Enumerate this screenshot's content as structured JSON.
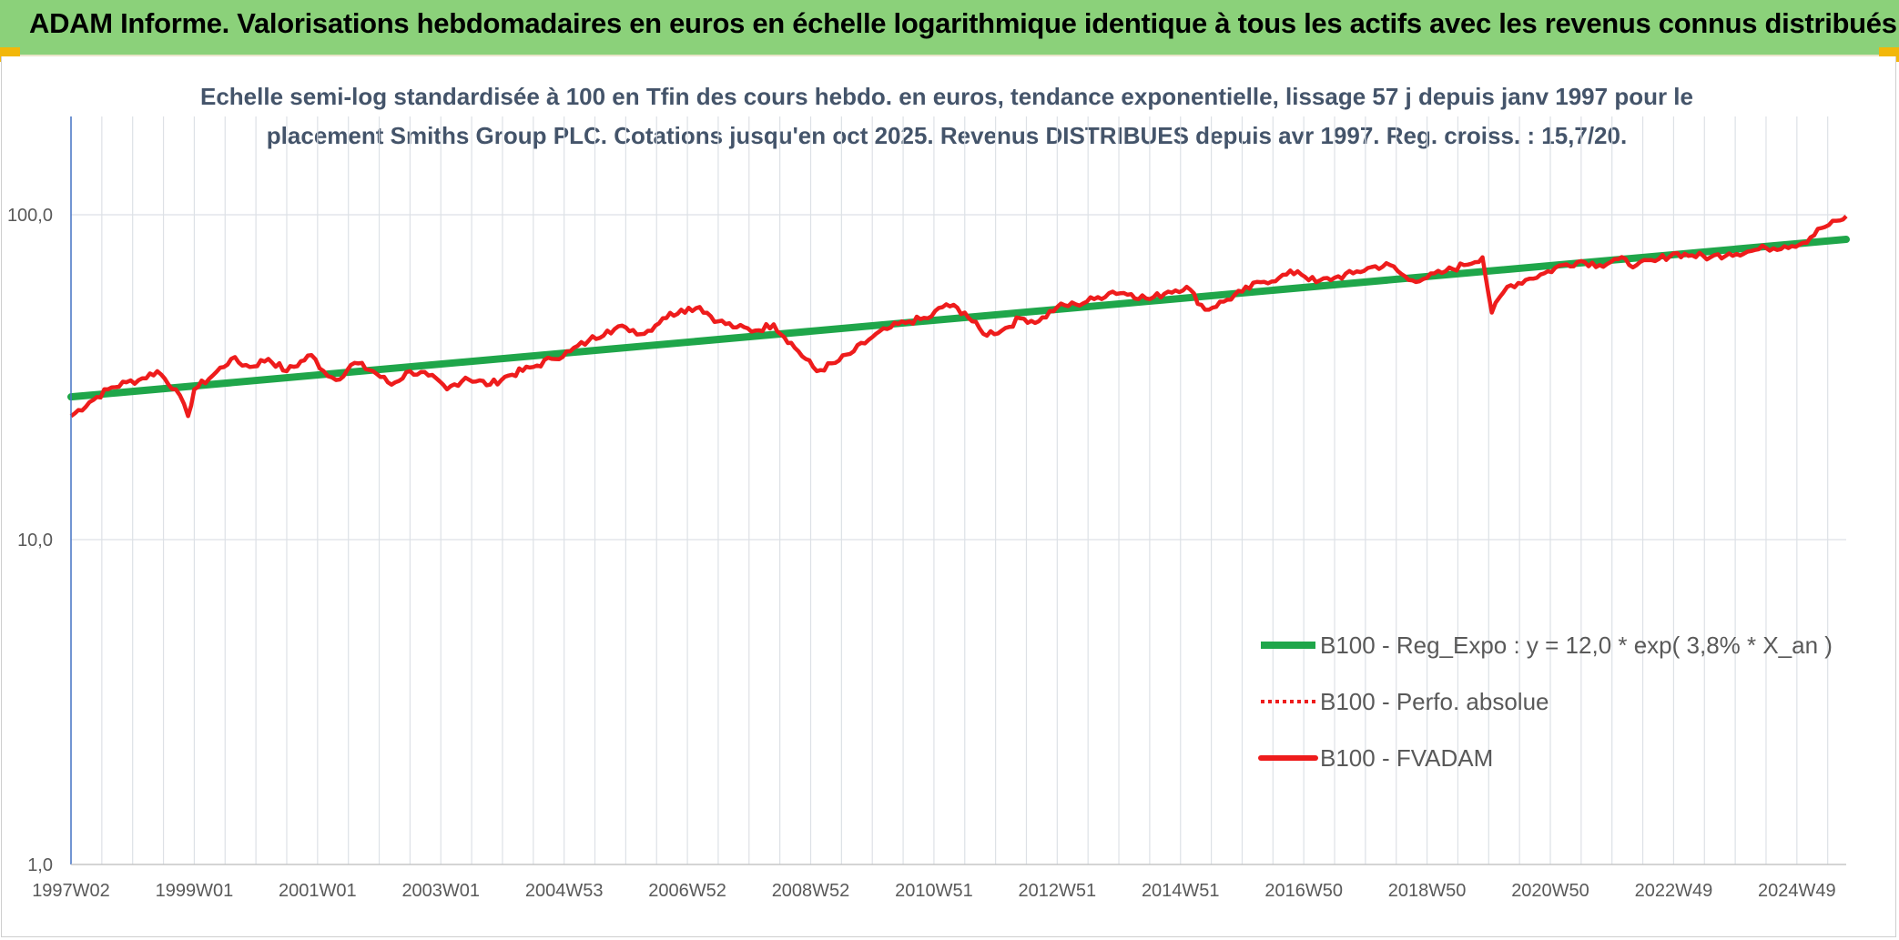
{
  "header": {
    "title": "ADAM Informe. Valorisations hebdomadaires en euros en échelle logarithmique identique à tous les actifs avec les revenus connus distribués"
  },
  "colors": {
    "banner": "#8bd17a",
    "trend": "#1fa64a",
    "fvadam": "#ee1c1c",
    "perfo": "#ee1c1c",
    "grid": "#dde1e6",
    "axis": "#4472c4",
    "text": "#595959"
  },
  "chart_data": {
    "type": "line",
    "title_lines": [
      "Echelle semi-log standardisée à 100 en Tfin des cours hebdo. en euros, tendance exponentielle, lissage 57 j depuis janv 1997 pour le",
      "placement Smiths Group PLC. Cotations jusqu'en oct 2025. Revenus DISTRIBUES depuis avr 1997. Reg. croiss. : 15,7/20."
    ],
    "yscale": "log",
    "ylim": [
      1,
      200
    ],
    "yticks": [
      {
        "value": 1,
        "label": "1,0"
      },
      {
        "value": 10,
        "label": "10,0"
      },
      {
        "value": 100,
        "label": "100,0"
      }
    ],
    "xlim": [
      1997.0,
      2025.8
    ],
    "xticks": [
      {
        "label": "1997W02",
        "x": 1997.0
      },
      {
        "label": "1999W01",
        "x": 1999.0
      },
      {
        "label": "2001W01",
        "x": 2001.0
      },
      {
        "label": "2003W01",
        "x": 2003.0
      },
      {
        "label": "2004W53",
        "x": 2005.0
      },
      {
        "label": "2006W52",
        "x": 2007.0
      },
      {
        "label": "2008W52",
        "x": 2009.0
      },
      {
        "label": "2010W51",
        "x": 2011.0
      },
      {
        "label": "2012W51",
        "x": 2013.0
      },
      {
        "label": "2014W51",
        "x": 2015.0
      },
      {
        "label": "2016W50",
        "x": 2017.0
      },
      {
        "label": "2018W50",
        "x": 2019.0
      },
      {
        "label": "2020W50",
        "x": 2021.0
      },
      {
        "label": "2022W49",
        "x": 2023.0
      },
      {
        "label": "2024W49",
        "x": 2025.0
      }
    ],
    "legend_position": "bottom-right",
    "series": [
      {
        "name": "B100 - Reg_Expo : y = 12,0 * exp( 3,8% *  X_an )",
        "style": "solid-thick",
        "color": "#1fa64a",
        "x": [
          1997.0,
          2025.8
        ],
        "y": [
          27.5,
          84.0
        ]
      },
      {
        "name": "B100 - Perfo. absolue",
        "style": "dotted",
        "color": "#ee1c1c",
        "x": [],
        "y": []
      },
      {
        "name": "B100 - FVADAM",
        "style": "solid",
        "color": "#ee1c1c",
        "x": [
          1997.0,
          1997.3,
          1997.6,
          1997.9,
          1998.1,
          1998.4,
          1998.7,
          1998.9,
          1999.0,
          1999.3,
          1999.6,
          1999.9,
          2000.2,
          2000.5,
          2000.9,
          2001.1,
          2001.3,
          2001.6,
          2001.9,
          2002.2,
          2002.5,
          2002.8,
          2003.1,
          2003.4,
          2003.8,
          2004.1,
          2004.5,
          2004.8,
          2005.1,
          2005.4,
          2005.7,
          2006.0,
          2006.3,
          2006.6,
          2006.9,
          2007.2,
          2007.5,
          2007.8,
          2008.1,
          2008.4,
          2008.8,
          2009.1,
          2009.4,
          2009.7,
          2010.0,
          2010.3,
          2010.6,
          2010.9,
          2011.2,
          2011.5,
          2011.8,
          2012.1,
          2012.4,
          2012.7,
          2013.0,
          2013.3,
          2013.6,
          2013.9,
          2014.2,
          2014.5,
          2014.8,
          2015.1,
          2015.4,
          2015.7,
          2016.0,
          2016.3,
          2016.6,
          2016.9,
          2017.2,
          2017.5,
          2017.8,
          2018.1,
          2018.4,
          2018.7,
          2019.0,
          2019.3,
          2019.6,
          2019.9,
          2020.05,
          2020.3,
          2020.6,
          2020.9,
          2021.2,
          2021.5,
          2021.8,
          2022.1,
          2022.4,
          2022.7,
          2023.0,
          2023.3,
          2023.6,
          2023.9,
          2024.2,
          2024.5,
          2024.8,
          2025.1,
          2025.4,
          2025.7,
          2025.8
        ],
        "y": [
          24.0,
          26.5,
          29.0,
          30.5,
          31.0,
          33.0,
          29.0,
          24.0,
          29.0,
          32.0,
          36.0,
          34.0,
          36.0,
          33.0,
          37.0,
          33.0,
          31.0,
          35.0,
          33.0,
          30.0,
          33.0,
          32.0,
          29.0,
          31.5,
          30.0,
          32.0,
          34.0,
          36.0,
          38.0,
          41.0,
          44.0,
          45.0,
          43.0,
          48.0,
          51.0,
          52.0,
          47.0,
          45.0,
          44.0,
          46.0,
          38.0,
          33.0,
          35.0,
          38.0,
          42.0,
          45.0,
          47.0,
          48.0,
          53.0,
          50.0,
          43.0,
          44.0,
          48.0,
          47.0,
          52.0,
          53.0,
          55.0,
          58.0,
          57.0,
          55.0,
          58.0,
          60.0,
          51.0,
          54.0,
          58.0,
          62.0,
          64.0,
          67.0,
          62.0,
          64.0,
          66.0,
          69.0,
          70.0,
          63.0,
          64.0,
          67.0,
          70.0,
          74.0,
          50.0,
          60.0,
          63.0,
          66.0,
          70.0,
          72.0,
          70.0,
          73.0,
          70.0,
          72.0,
          76.0,
          75.0,
          74.0,
          76.0,
          77.0,
          79.0,
          80.0,
          82.0,
          91.0,
          96.0,
          99.0
        ]
      }
    ]
  }
}
